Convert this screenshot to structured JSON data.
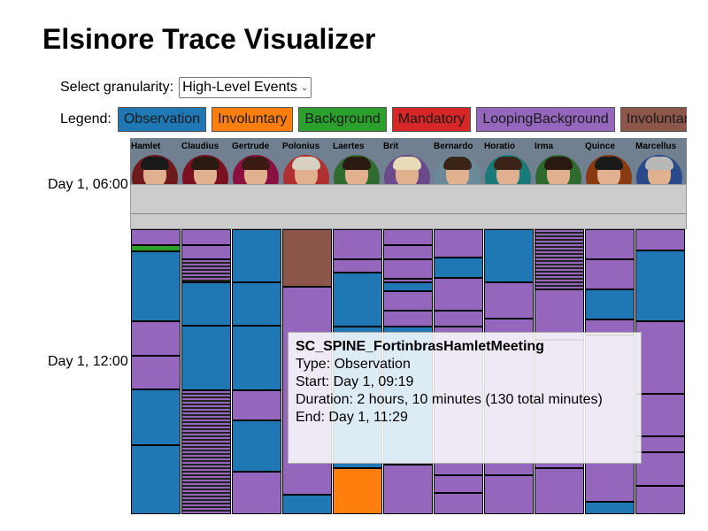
{
  "title": "Elsinore Trace Visualizer",
  "granularity": {
    "label": "Select granularity:",
    "selected": "High-Level Events"
  },
  "legend": {
    "label": "Legend:",
    "items": [
      {
        "label": "Observation",
        "color": "#1f77b4"
      },
      {
        "label": "Involuntary",
        "color": "#ff7f0e"
      },
      {
        "label": "Background",
        "color": "#2ca02c"
      },
      {
        "label": "Mandatory",
        "color": "#d62728"
      },
      {
        "label": "LoopingBackground",
        "color": "#9467bd"
      },
      {
        "label": "InvoluntaryB",
        "color": "#8c564b"
      }
    ]
  },
  "characters": [
    {
      "name": "Hamlet",
      "ring": "#6e1a1a",
      "hair": "#1a1a1a"
    },
    {
      "name": "Claudius",
      "ring": "#7a1020",
      "hair": "#2a1a12"
    },
    {
      "name": "Gertrude",
      "ring": "#8a1040",
      "hair": "#3a1a12"
    },
    {
      "name": "Polonius",
      "ring": "#b03030",
      "hair": "#d8d0c0"
    },
    {
      "name": "Laertes",
      "ring": "#2f6b2f",
      "hair": "#2a1a12"
    },
    {
      "name": "Brit",
      "ring": "#6a4a8a",
      "hair": "#e8dcb8"
    },
    {
      "name": "Bernardo",
      "ring": "#6a8a9a",
      "hair": "#3a2418"
    },
    {
      "name": "Horatio",
      "ring": "#1a7a7a",
      "hair": "#3a2418"
    },
    {
      "name": "Irma",
      "ring": "#2f6b2f",
      "hair": "#2a1a12"
    },
    {
      "name": "Quince",
      "ring": "#8a3a10",
      "hair": "#1a1a1a"
    },
    {
      "name": "Marcellus",
      "ring": "#2a4a8a",
      "hair": "#b8b8b8"
    }
  ],
  "time_labels": [
    "Day 1, 06:00",
    "Day 1, 12:00"
  ],
  "timeline": {
    "columns": [
      [
        [
          "l",
          0,
          18
        ],
        [
          "g",
          18,
          25
        ],
        [
          "o",
          25,
          104
        ],
        [
          "l",
          104,
          143
        ],
        [
          "l",
          143,
          181
        ],
        [
          "o",
          181,
          244
        ],
        [
          "o",
          244,
          322
        ]
      ],
      [
        [
          "l",
          0,
          18
        ],
        [
          "l",
          18,
          34
        ],
        [
          "s",
          34,
          60
        ],
        [
          "o",
          60,
          109
        ],
        [
          "o",
          109,
          182
        ],
        [
          "s",
          182,
          322
        ]
      ],
      [
        [
          "o",
          0,
          60
        ],
        [
          "o",
          60,
          109
        ],
        [
          "o",
          109,
          182
        ],
        [
          "l",
          182,
          216
        ],
        [
          "o",
          216,
          274
        ],
        [
          "l",
          274,
          322
        ]
      ],
      [
        [
          "b",
          0,
          65
        ],
        [
          "l",
          65,
          300
        ],
        [
          "o",
          300,
          322
        ]
      ],
      [
        [
          "l",
          0,
          34
        ],
        [
          "l",
          34,
          49
        ],
        [
          "o",
          49,
          110
        ],
        [
          "o",
          110,
          270
        ],
        [
          "i",
          270,
          322
        ]
      ],
      [
        [
          "l",
          0,
          18
        ],
        [
          "l",
          18,
          34
        ],
        [
          "l",
          34,
          56
        ],
        [
          "s",
          56,
          60
        ],
        [
          "o",
          60,
          70
        ],
        [
          "l",
          70,
          92
        ],
        [
          "l",
          92,
          110
        ],
        [
          "o",
          110,
          266
        ],
        [
          "l",
          266,
          322
        ]
      ],
      [
        [
          "l",
          0,
          32
        ],
        [
          "o",
          32,
          55
        ],
        [
          "l",
          55,
          92
        ],
        [
          "l",
          92,
          110
        ],
        [
          "l",
          110,
          278
        ],
        [
          "l",
          278,
          298
        ],
        [
          "l",
          298,
          322
        ]
      ],
      [
        [
          "o",
          0,
          60
        ],
        [
          "l",
          60,
          101
        ],
        [
          "l",
          101,
          278
        ],
        [
          "l",
          278,
          322
        ]
      ],
      [
        [
          "s",
          0,
          68
        ],
        [
          "l",
          68,
          125
        ],
        [
          "l",
          125,
          270
        ],
        [
          "l",
          270,
          322
        ]
      ],
      [
        [
          "l",
          0,
          34
        ],
        [
          "l",
          34,
          68
        ],
        [
          "o",
          68,
          102
        ],
        [
          "l",
          102,
          120
        ],
        [
          "l",
          120,
          308
        ],
        [
          "o",
          308,
          322
        ]
      ],
      [
        [
          "l",
          0,
          24
        ],
        [
          "o",
          24,
          104
        ],
        [
          "l",
          104,
          186
        ],
        [
          "l",
          186,
          234
        ],
        [
          "l",
          234,
          252
        ],
        [
          "l",
          252,
          290
        ],
        [
          "l",
          290,
          322
        ]
      ]
    ]
  },
  "tooltip": {
    "title": "SC_SPINE_FortinbrasHamletMeeting",
    "type": "Type: Observation",
    "start": "Start: Day 1, 09:19",
    "duration": "Duration: 2 hours, 10 minutes (130 total minutes)",
    "end": "End: Day 1, 11:29"
  }
}
